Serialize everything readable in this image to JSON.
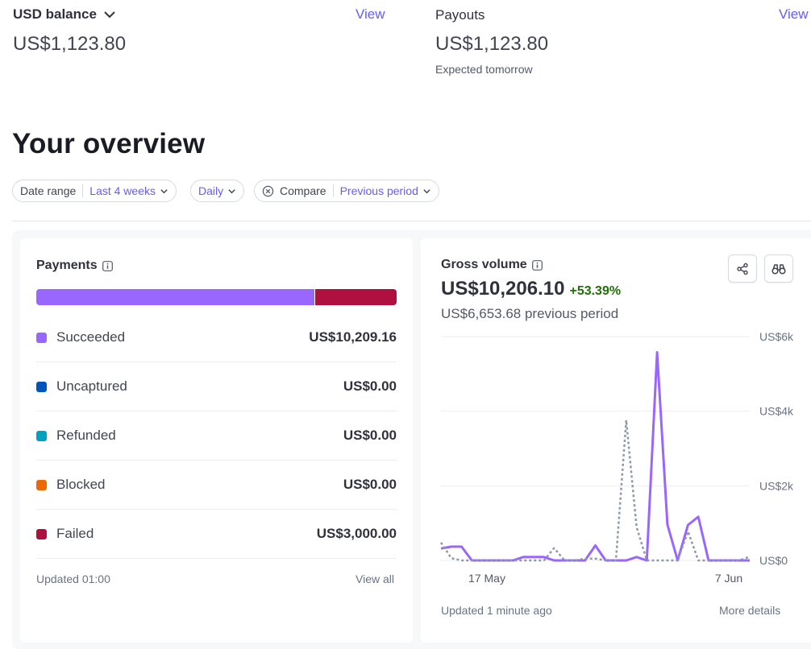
{
  "balance": {
    "title": "USD balance",
    "amount": "US$1,123.80",
    "view_label": "View"
  },
  "payouts": {
    "title": "Payouts",
    "amount": "US$1,123.80",
    "note": "Expected tomorrow",
    "view_label": "View"
  },
  "overview": {
    "title": "Your overview",
    "filters": {
      "date_range_label": "Date range",
      "date_range_value": "Last 4 weeks",
      "interval_value": "Daily",
      "compare_label": "Compare",
      "compare_value": "Previous period"
    }
  },
  "payments": {
    "title": "Payments",
    "bar": {
      "succeeded_fraction": 0.773,
      "failed_fraction": 0.227
    },
    "rows": [
      {
        "name": "Succeeded",
        "amount": "US$10,209.16",
        "color": "#9966ff"
      },
      {
        "name": "Uncaptured",
        "amount": "US$0.00",
        "color": "#0055bc"
      },
      {
        "name": "Refunded",
        "amount": "US$0.00",
        "color": "#00a1c2"
      },
      {
        "name": "Blocked",
        "amount": "US$0.00",
        "color": "#ed6804"
      },
      {
        "name": "Failed",
        "amount": "US$3,000.00",
        "color": "#b0103f"
      }
    ],
    "updated": "Updated 01:00",
    "view_all": "View all"
  },
  "gross_volume": {
    "title": "Gross volume",
    "amount": "US$10,206.10",
    "change": "+53.39%",
    "previous": "US$6,653.68 previous period",
    "updated": "Updated 1 minute ago",
    "more_details": "More details"
  },
  "chart_data": {
    "type": "line",
    "y_ticks": [
      "US$6k",
      "US$4k",
      "US$2k",
      "US$0"
    ],
    "ylim": [
      0,
      6000
    ],
    "x_tick_labels": [
      "17 May",
      "7 Jun"
    ],
    "series": [
      {
        "style": "solid",
        "color": "#9966ff",
        "values": [
          320,
          370,
          370,
          0,
          0,
          0,
          0,
          0,
          90,
          90,
          90,
          0,
          0,
          0,
          0,
          400,
          0,
          0,
          0,
          90,
          0,
          5580,
          960,
          0,
          950,
          1170,
          0,
          0,
          0,
          0,
          0
        ]
      },
      {
        "style": "dotted",
        "color": "#8d98aa",
        "values": [
          480,
          60,
          0,
          0,
          0,
          0,
          0,
          0,
          0,
          0,
          0,
          330,
          0,
          0,
          50,
          50,
          0,
          0,
          3760,
          900,
          0,
          0,
          0,
          0,
          780,
          0,
          0,
          0,
          0,
          0,
          100
        ]
      }
    ]
  }
}
